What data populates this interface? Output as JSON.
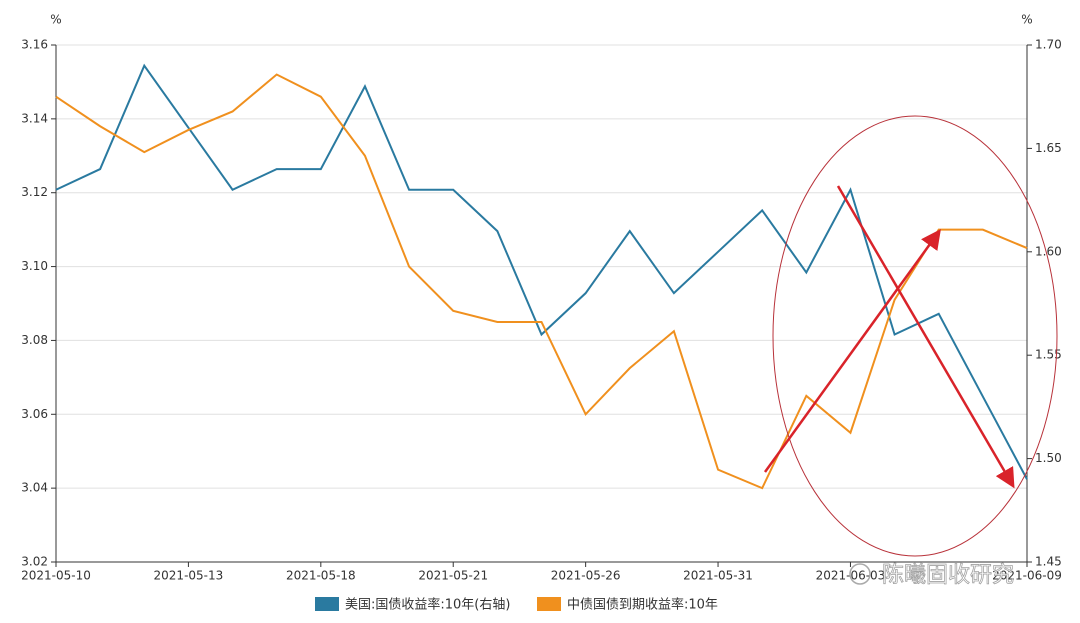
{
  "chart_data": {
    "type": "line",
    "y_unit": "%",
    "y2_unit": "%",
    "watermark": "陈曦固收研究",
    "x": [
      "2021-05-10",
      null,
      null,
      "2021-05-13",
      null,
      null,
      "2021-05-18",
      null,
      null,
      "2021-05-21",
      null,
      null,
      "2021-05-26",
      null,
      null,
      "2021-05-31",
      null,
      null,
      "2021-06-03",
      null,
      null,
      null,
      "2021-06-09"
    ],
    "ylim": [
      3.02,
      3.16
    ],
    "yticks": [
      3.02,
      3.04,
      3.06,
      3.08,
      {
        "value": 3.1,
        "label": "3.10"
      },
      3.12,
      3.14,
      3.16
    ],
    "y2lim": [
      1.45,
      1.7
    ],
    "y2ticks": [
      1.45,
      {
        "value": 1.5,
        "label": "1.50"
      },
      1.55,
      {
        "value": 1.6,
        "label": "1.60"
      },
      1.65,
      {
        "value": 1.7,
        "label": "1.70"
      }
    ],
    "grid": true,
    "series": [
      {
        "name": "美国:国债收益率:10年(右轴)",
        "color": "#2a7aa0",
        "axis": "y2",
        "values": [
          1.63,
          1.64,
          1.69,
          1.66,
          1.63,
          1.64,
          1.64,
          1.68,
          1.63,
          1.63,
          1.61,
          1.56,
          1.58,
          1.61,
          1.58,
          1.6,
          1.62,
          1.59,
          1.63,
          1.56,
          1.57,
          1.53,
          1.49
        ]
      },
      {
        "name": "中债国债到期收益率:10年",
        "color": "#f0901e",
        "values": [
          3.146,
          3.138,
          3.131,
          3.137,
          3.142,
          3.152,
          3.146,
          3.13,
          3.1,
          3.088,
          3.085,
          3.085,
          3.06,
          3.0725,
          3.0825,
          3.045,
          3.04,
          3.065,
          3.055,
          3.091,
          3.11,
          3.11,
          3.105
        ]
      }
    ]
  }
}
